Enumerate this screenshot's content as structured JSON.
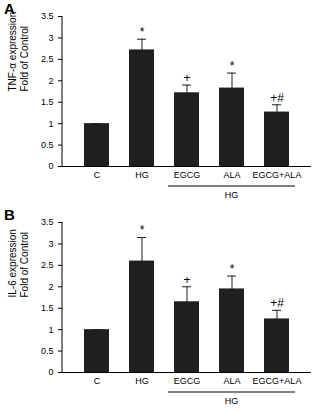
{
  "chart_data": [
    {
      "type": "bar",
      "title": "A",
      "ylabel": "TNF-α expression\nFold of Control",
      "categories": [
        "C",
        "HG",
        "EGCG",
        "ALA",
        "EGCG+ALA"
      ],
      "values": [
        1.0,
        2.72,
        1.72,
        1.83,
        1.27
      ],
      "errors": [
        0,
        0.25,
        0.18,
        0.35,
        0.17
      ],
      "annotations": [
        null,
        "*",
        "+",
        "*",
        "+#"
      ],
      "groups": [
        {
          "label": "HG",
          "categories": [
            "EGCG",
            "ALA",
            "EGCG+ALA"
          ]
        }
      ],
      "color": "#1f1f1f",
      "ylim": [
        0,
        3.5
      ],
      "yticks": [
        0,
        0.5,
        1,
        1.5,
        2,
        2.5,
        3,
        3.5
      ],
      "grid": false
    },
    {
      "type": "bar",
      "title": "B",
      "ylabel": "IL-6 expression\nFold of Control",
      "categories": [
        "C",
        "HG",
        "EGCG",
        "ALA",
        "EGCG+ALA"
      ],
      "values": [
        1.0,
        2.6,
        1.65,
        1.95,
        1.25
      ],
      "errors": [
        0,
        0.55,
        0.35,
        0.3,
        0.2
      ],
      "annotations": [
        null,
        "*",
        "+",
        "*",
        "+#"
      ],
      "groups": [
        {
          "label": "HG",
          "categories": [
            "EGCG",
            "ALA",
            "EGCG+ALA"
          ]
        }
      ],
      "color": "#1f1f1f",
      "ylim": [
        0,
        3.5
      ],
      "yticks": [
        0,
        0.5,
        1,
        1.5,
        2,
        2.5,
        3,
        3.5
      ],
      "grid": false
    }
  ]
}
